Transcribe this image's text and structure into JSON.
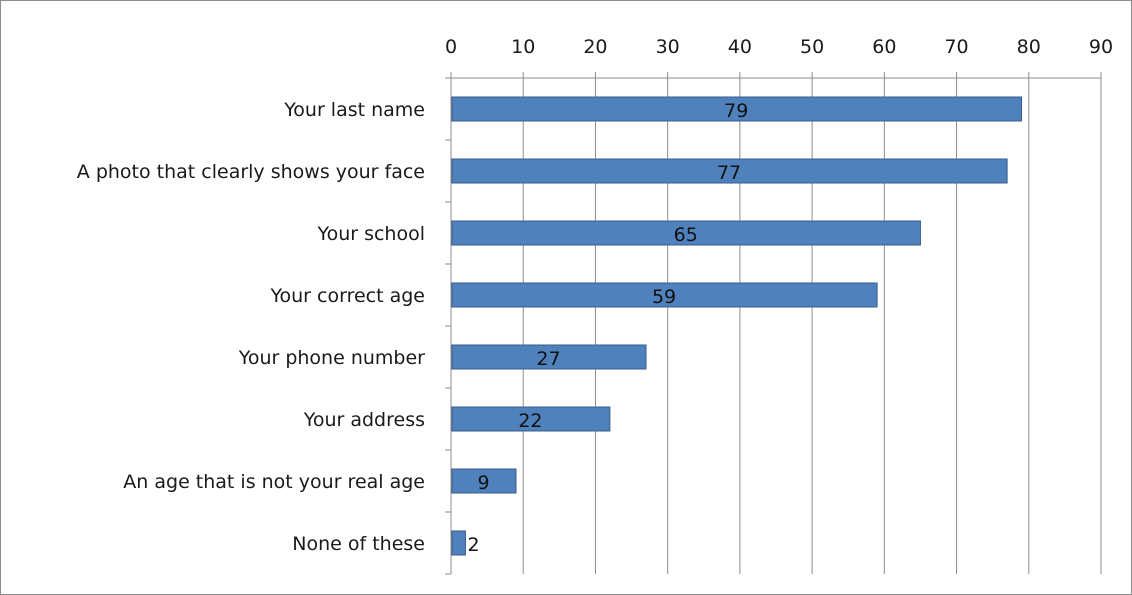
{
  "chart_data": {
    "type": "bar",
    "orientation": "horizontal",
    "categories": [
      "Your last name",
      "A photo that clearly shows your face",
      "Your school",
      "Your correct age",
      "Your phone number",
      "Your address",
      "An age that is not your real age",
      "None of these"
    ],
    "values": [
      79,
      77,
      65,
      59,
      27,
      22,
      9,
      2
    ],
    "title": "",
    "xlabel": "",
    "ylabel": "",
    "xlim": [
      0,
      90
    ],
    "xticks": [
      0,
      10,
      20,
      30,
      40,
      50,
      60,
      70,
      80,
      90
    ],
    "axis_position": "top",
    "grid": true,
    "legend": "none",
    "bar_color": "#4f81bd",
    "bar_border_color": "#385d8a",
    "grid_color": "#8c8c8c"
  }
}
